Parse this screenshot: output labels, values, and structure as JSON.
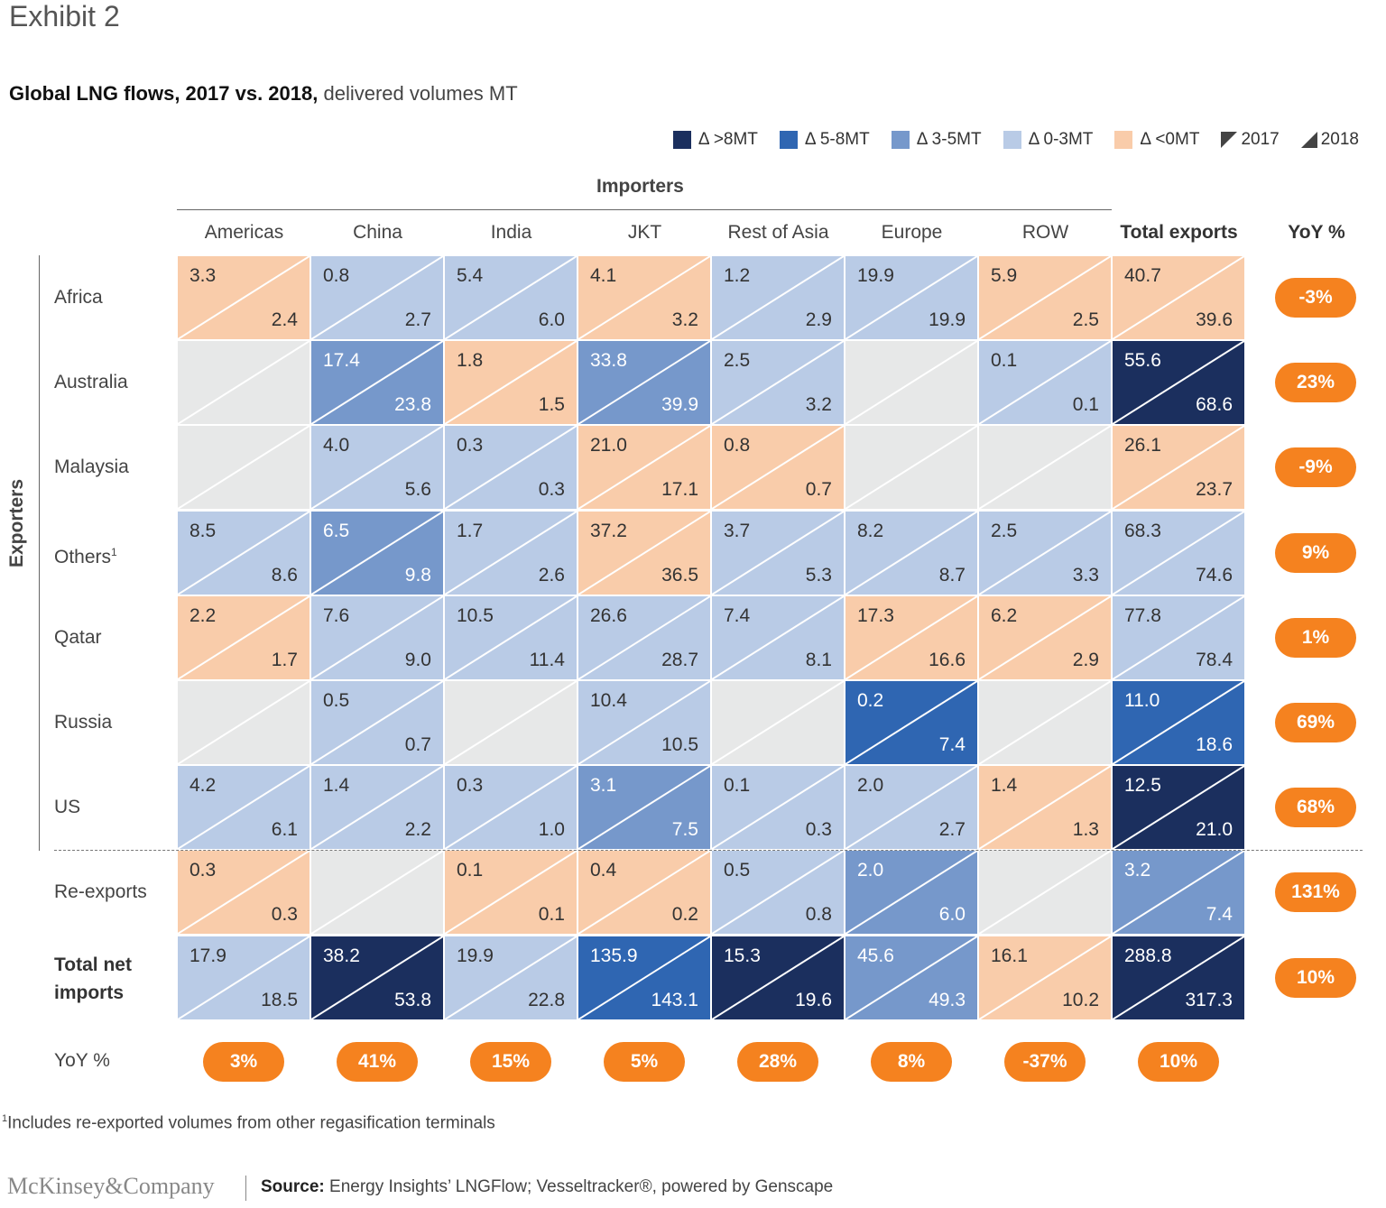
{
  "exhibit": "Exhibit 2",
  "title_bold": "Global LNG flows, 2017 vs. 2018,",
  "title_rest": " delivered volumes MT",
  "legend": [
    {
      "label": "Δ >8MT",
      "color": "#1b2f5e"
    },
    {
      "label": "Δ 5-8MT",
      "color": "#2f66b2"
    },
    {
      "label": "Δ 3-5MT",
      "color": "#7698cb"
    },
    {
      "label": "Δ 0-3MT",
      "color": "#b9cbe6"
    },
    {
      "label": "Δ <0MT",
      "color": "#f9ccaa"
    }
  ],
  "legend_2017": "2017",
  "legend_2018": "2018",
  "importers_label": "Importers",
  "exporters_label": "Exporters",
  "yoy_header": "YoY %",
  "yoy_row_label": "YoY %",
  "footnote": "Includes re-exported volumes from other regasification terminals",
  "footnote_mark": "1",
  "brand": "McKinsey&Company",
  "source_label": "Source:",
  "source_text": " Energy Insights’ LNGFlow; Vesseltracker®, powered by Genscape",
  "chart_data": {
    "type": "table",
    "title": "Global LNG flows, 2017 vs. 2018, delivered volumes MT",
    "columns": [
      "Americas",
      "China",
      "India",
      "JKT",
      "Rest of Asia",
      "Europe",
      "ROW",
      "Total exports"
    ],
    "rows": [
      {
        "label": "Africa",
        "sup": "",
        "yoy": "-3%",
        "cells": [
          [
            "3.3",
            "2.4",
            "neg"
          ],
          [
            "0.8",
            "2.7",
            "low"
          ],
          [
            "5.4",
            "6.0",
            "low"
          ],
          [
            "4.1",
            "3.2",
            "neg"
          ],
          [
            "1.2",
            "2.9",
            "low"
          ],
          [
            "19.9",
            "19.9",
            "low"
          ],
          [
            "5.9",
            "2.5",
            "neg"
          ],
          [
            "40.7",
            "39.6",
            "neg"
          ]
        ]
      },
      {
        "label": "Australia",
        "sup": "",
        "yoy": "23%",
        "cells": [
          [
            "",
            "",
            "none"
          ],
          [
            "17.4",
            "23.8",
            "mid"
          ],
          [
            "1.8",
            "1.5",
            "neg"
          ],
          [
            "33.8",
            "39.9",
            "mid"
          ],
          [
            "2.5",
            "3.2",
            "low"
          ],
          [
            "",
            "",
            "none"
          ],
          [
            "0.1",
            "0.1",
            "low"
          ],
          [
            "55.6",
            "68.6",
            "top"
          ]
        ]
      },
      {
        "label": "Malaysia",
        "sup": "",
        "yoy": "-9%",
        "cells": [
          [
            "",
            "",
            "none"
          ],
          [
            "4.0",
            "5.6",
            "low"
          ],
          [
            "0.3",
            "0.3",
            "low"
          ],
          [
            "21.0",
            "17.1",
            "neg"
          ],
          [
            "0.8",
            "0.7",
            "neg"
          ],
          [
            "",
            "",
            "none"
          ],
          [
            "",
            "",
            "none"
          ],
          [
            "26.1",
            "23.7",
            "neg"
          ]
        ]
      },
      {
        "label": "Others",
        "sup": "1",
        "yoy": "9%",
        "cells": [
          [
            "8.5",
            "8.6",
            "low"
          ],
          [
            "6.5",
            "9.8",
            "mid"
          ],
          [
            "1.7",
            "2.6",
            "low"
          ],
          [
            "37.2",
            "36.5",
            "neg"
          ],
          [
            "3.7",
            "5.3",
            "low"
          ],
          [
            "8.2",
            "8.7",
            "low"
          ],
          [
            "2.5",
            "3.3",
            "low"
          ],
          [
            "68.3",
            "74.6",
            "low"
          ]
        ]
      },
      {
        "label": "Qatar",
        "sup": "",
        "yoy": "1%",
        "cells": [
          [
            "2.2",
            "1.7",
            "neg"
          ],
          [
            "7.6",
            "9.0",
            "low"
          ],
          [
            "10.5",
            "11.4",
            "low"
          ],
          [
            "26.6",
            "28.7",
            "low"
          ],
          [
            "7.4",
            "8.1",
            "low"
          ],
          [
            "17.3",
            "16.6",
            "neg"
          ],
          [
            "6.2",
            "2.9",
            "neg"
          ],
          [
            "77.8",
            "78.4",
            "low"
          ]
        ]
      },
      {
        "label": "Russia",
        "sup": "",
        "yoy": "69%",
        "cells": [
          [
            "",
            "",
            "none"
          ],
          [
            "0.5",
            "0.7",
            "low"
          ],
          [
            "",
            "",
            "none"
          ],
          [
            "10.4",
            "10.5",
            "low"
          ],
          [
            "",
            "",
            "none"
          ],
          [
            "0.2",
            "7.4",
            "high"
          ],
          [
            "",
            "",
            "none"
          ],
          [
            "11.0",
            "18.6",
            "high"
          ]
        ]
      },
      {
        "label": "US",
        "sup": "",
        "yoy": "68%",
        "cells": [
          [
            "4.2",
            "6.1",
            "low"
          ],
          [
            "1.4",
            "2.2",
            "low"
          ],
          [
            "0.3",
            "1.0",
            "low"
          ],
          [
            "3.1",
            "7.5",
            "mid"
          ],
          [
            "0.1",
            "0.3",
            "low"
          ],
          [
            "2.0",
            "2.7",
            "low"
          ],
          [
            "1.4",
            "1.3",
            "neg"
          ],
          [
            "12.5",
            "21.0",
            "top"
          ]
        ]
      },
      {
        "label": "Re-exports",
        "sup": "",
        "yoy": "131%",
        "cells": [
          [
            "0.3",
            "0.3",
            "neg"
          ],
          [
            "",
            "",
            "none"
          ],
          [
            "0.1",
            "0.1",
            "neg"
          ],
          [
            "0.4",
            "0.2",
            "neg"
          ],
          [
            "0.5",
            "0.8",
            "low"
          ],
          [
            "2.0",
            "6.0",
            "mid"
          ],
          [
            "",
            "",
            "none"
          ],
          [
            "3.2",
            "7.4",
            "mid"
          ]
        ]
      },
      {
        "label": "Total net imports",
        "sup": "",
        "yoy": "10%",
        "cells": [
          [
            "17.9",
            "18.5",
            "low"
          ],
          [
            "38.2",
            "53.8",
            "top"
          ],
          [
            "19.9",
            "22.8",
            "low"
          ],
          [
            "135.9",
            "143.1",
            "high"
          ],
          [
            "15.3",
            "19.6",
            "top"
          ],
          [
            "45.6",
            "49.3",
            "mid"
          ],
          [
            "16.1",
            "10.2",
            "neg"
          ],
          [
            "288.8",
            "317.3",
            "top"
          ]
        ]
      }
    ],
    "column_yoy": [
      "3%",
      "41%",
      "15%",
      "5%",
      "28%",
      "8%",
      "-37%",
      "10%"
    ],
    "colors": {
      "top": [
        "#1b2f5e",
        "#ffffff"
      ],
      "high": [
        "#2f66b2",
        "#ffffff"
      ],
      "mid": [
        "#7698cb",
        "#ffffff"
      ],
      "low": [
        "#b9cbe6",
        "#333333"
      ],
      "neg": [
        "#f9ccaa",
        "#333333"
      ],
      "none": [
        "#e7e8e8",
        "#333333"
      ]
    },
    "pill_color": "#f5821f"
  }
}
